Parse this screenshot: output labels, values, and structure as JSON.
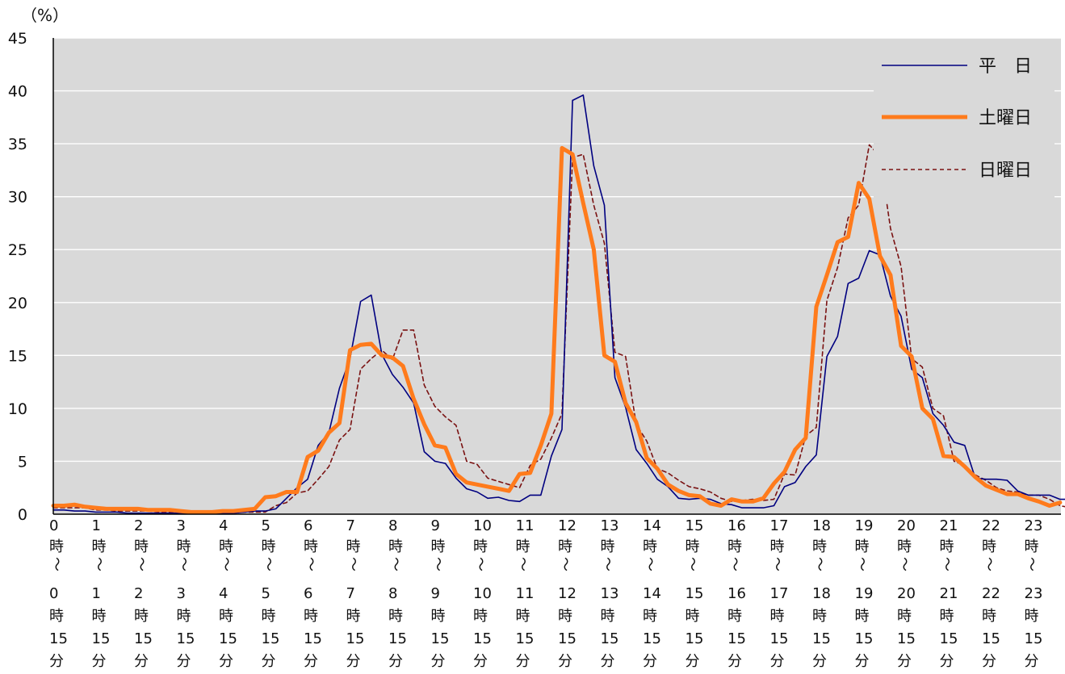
{
  "chart_data": {
    "type": "line",
    "unit_label": "（%）",
    "ylim": [
      0,
      45
    ],
    "yticks": [
      0,
      5,
      10,
      15,
      20,
      25,
      30,
      35,
      40,
      45
    ],
    "grid": true,
    "legend_position": "top-right",
    "x_start_labels": [
      "0",
      "1",
      "2",
      "3",
      "4",
      "5",
      "6",
      "7",
      "8",
      "9",
      "10",
      "11",
      "12",
      "13",
      "14",
      "15",
      "16",
      "17",
      "18",
      "19",
      "20",
      "21",
      "22",
      "23"
    ],
    "x_label_lines": [
      "時",
      "〜"
    ],
    "x_end_labels": [
      "0",
      "1",
      "2",
      "3",
      "4",
      "5",
      "6",
      "7",
      "8",
      "9",
      "10",
      "11",
      "12",
      "13",
      "14",
      "15",
      "16",
      "17",
      "18",
      "19",
      "20",
      "21",
      "22",
      "23"
    ],
    "x_end_suffix_lines": [
      "時",
      "15",
      "分"
    ],
    "series": [
      {
        "name": "平　日",
        "color": "#000080",
        "style": "thin",
        "values": [
          0.4,
          0.4,
          0.3,
          0.3,
          0.2,
          0.2,
          0.2,
          0.1,
          0.1,
          0.1,
          0.1,
          0.1,
          0.1,
          0.1,
          0.1,
          0.1,
          0.1,
          0.1,
          0.2,
          0.3,
          0.3,
          0.5,
          1.5,
          2.5,
          3.3,
          6.5,
          7.7,
          11.9,
          14.7,
          20.1,
          20.7,
          15.1,
          13.2,
          12.0,
          10.5,
          5.9,
          5.0,
          4.8,
          3.4,
          2.4,
          2.1,
          1.5,
          1.6,
          1.3,
          1.2,
          1.8,
          1.8,
          5.5,
          8.0,
          39.1,
          39.6,
          32.9,
          29.2,
          12.9,
          10.1,
          6.1,
          4.8,
          3.3,
          2.6,
          1.5,
          1.4,
          1.5,
          1.4,
          1.0,
          0.9,
          0.6,
          0.6,
          0.6,
          0.8,
          2.6,
          3.0,
          4.5,
          5.6,
          14.9,
          16.8,
          21.8,
          22.3,
          24.9,
          24.5,
          20.6,
          18.7,
          13.7,
          12.9,
          9.5,
          8.4,
          6.8,
          6.5,
          3.4,
          3.3,
          3.3,
          3.2,
          2.2,
          1.8,
          1.8,
          1.8,
          1.4,
          1.4
        ]
      },
      {
        "name": "土曜日",
        "color": "#ff7b1c",
        "style": "thick",
        "values": [
          0.8,
          0.8,
          0.9,
          0.7,
          0.6,
          0.5,
          0.5,
          0.5,
          0.5,
          0.4,
          0.4,
          0.4,
          0.3,
          0.2,
          0.2,
          0.2,
          0.3,
          0.3,
          0.4,
          0.5,
          1.6,
          1.7,
          2.1,
          2.1,
          5.4,
          6.0,
          7.7,
          8.6,
          15.5,
          16.0,
          16.1,
          15.0,
          14.8,
          14.0,
          10.9,
          8.5,
          6.5,
          6.3,
          3.8,
          3.0,
          2.8,
          2.6,
          2.4,
          2.2,
          3.8,
          3.9,
          6.5,
          9.5,
          34.6,
          34.0,
          29.4,
          25.0,
          15.0,
          14.4,
          10.5,
          8.7,
          5.3,
          4.3,
          2.8,
          2.2,
          1.8,
          1.7,
          1.0,
          0.8,
          1.4,
          1.2,
          1.2,
          1.5,
          2.9,
          4.0,
          6.1,
          7.2,
          19.6,
          22.6,
          25.7,
          26.2,
          31.3,
          29.8,
          24.4,
          22.6,
          15.9,
          14.9,
          10.0,
          9.0,
          5.5,
          5.4,
          4.5,
          3.5,
          2.7,
          2.3,
          1.9,
          1.9,
          1.5,
          1.2,
          0.8,
          1.1
        ]
      },
      {
        "name": "日曜日",
        "color": "#7a1212",
        "style": "dashed",
        "values": [
          0.6,
          0.6,
          0.6,
          0.6,
          0.4,
          0.4,
          0.3,
          0.3,
          0.3,
          0.3,
          0.2,
          0.2,
          0.2,
          0.2,
          0.1,
          0.1,
          0.1,
          0.1,
          0.2,
          0.2,
          0.2,
          0.8,
          1.1,
          2.0,
          2.2,
          3.3,
          4.5,
          7.0,
          8.0,
          13.7,
          14.7,
          15.5,
          14.6,
          17.4,
          17.4,
          12.2,
          10.2,
          9.2,
          8.4,
          5.0,
          4.7,
          3.4,
          3.1,
          2.8,
          2.5,
          4.6,
          5.2,
          7.2,
          9.5,
          33.7,
          34.0,
          29.2,
          25.6,
          15.3,
          14.9,
          8.5,
          6.9,
          4.3,
          3.9,
          3.2,
          2.6,
          2.4,
          2.1,
          1.5,
          1.2,
          1.3,
          1.4,
          1.3,
          1.4,
          3.8,
          3.7,
          7.4,
          8.2,
          20.2,
          23.3,
          28.0,
          29.2,
          34.9,
          33.8,
          27.0,
          23.4,
          14.7,
          13.9,
          10.0,
          9.3,
          5.0,
          4.6,
          3.7,
          3.2,
          2.5,
          2.2,
          2.1,
          1.8,
          1.8,
          1.4,
          0.8,
          0.6
        ]
      }
    ]
  }
}
